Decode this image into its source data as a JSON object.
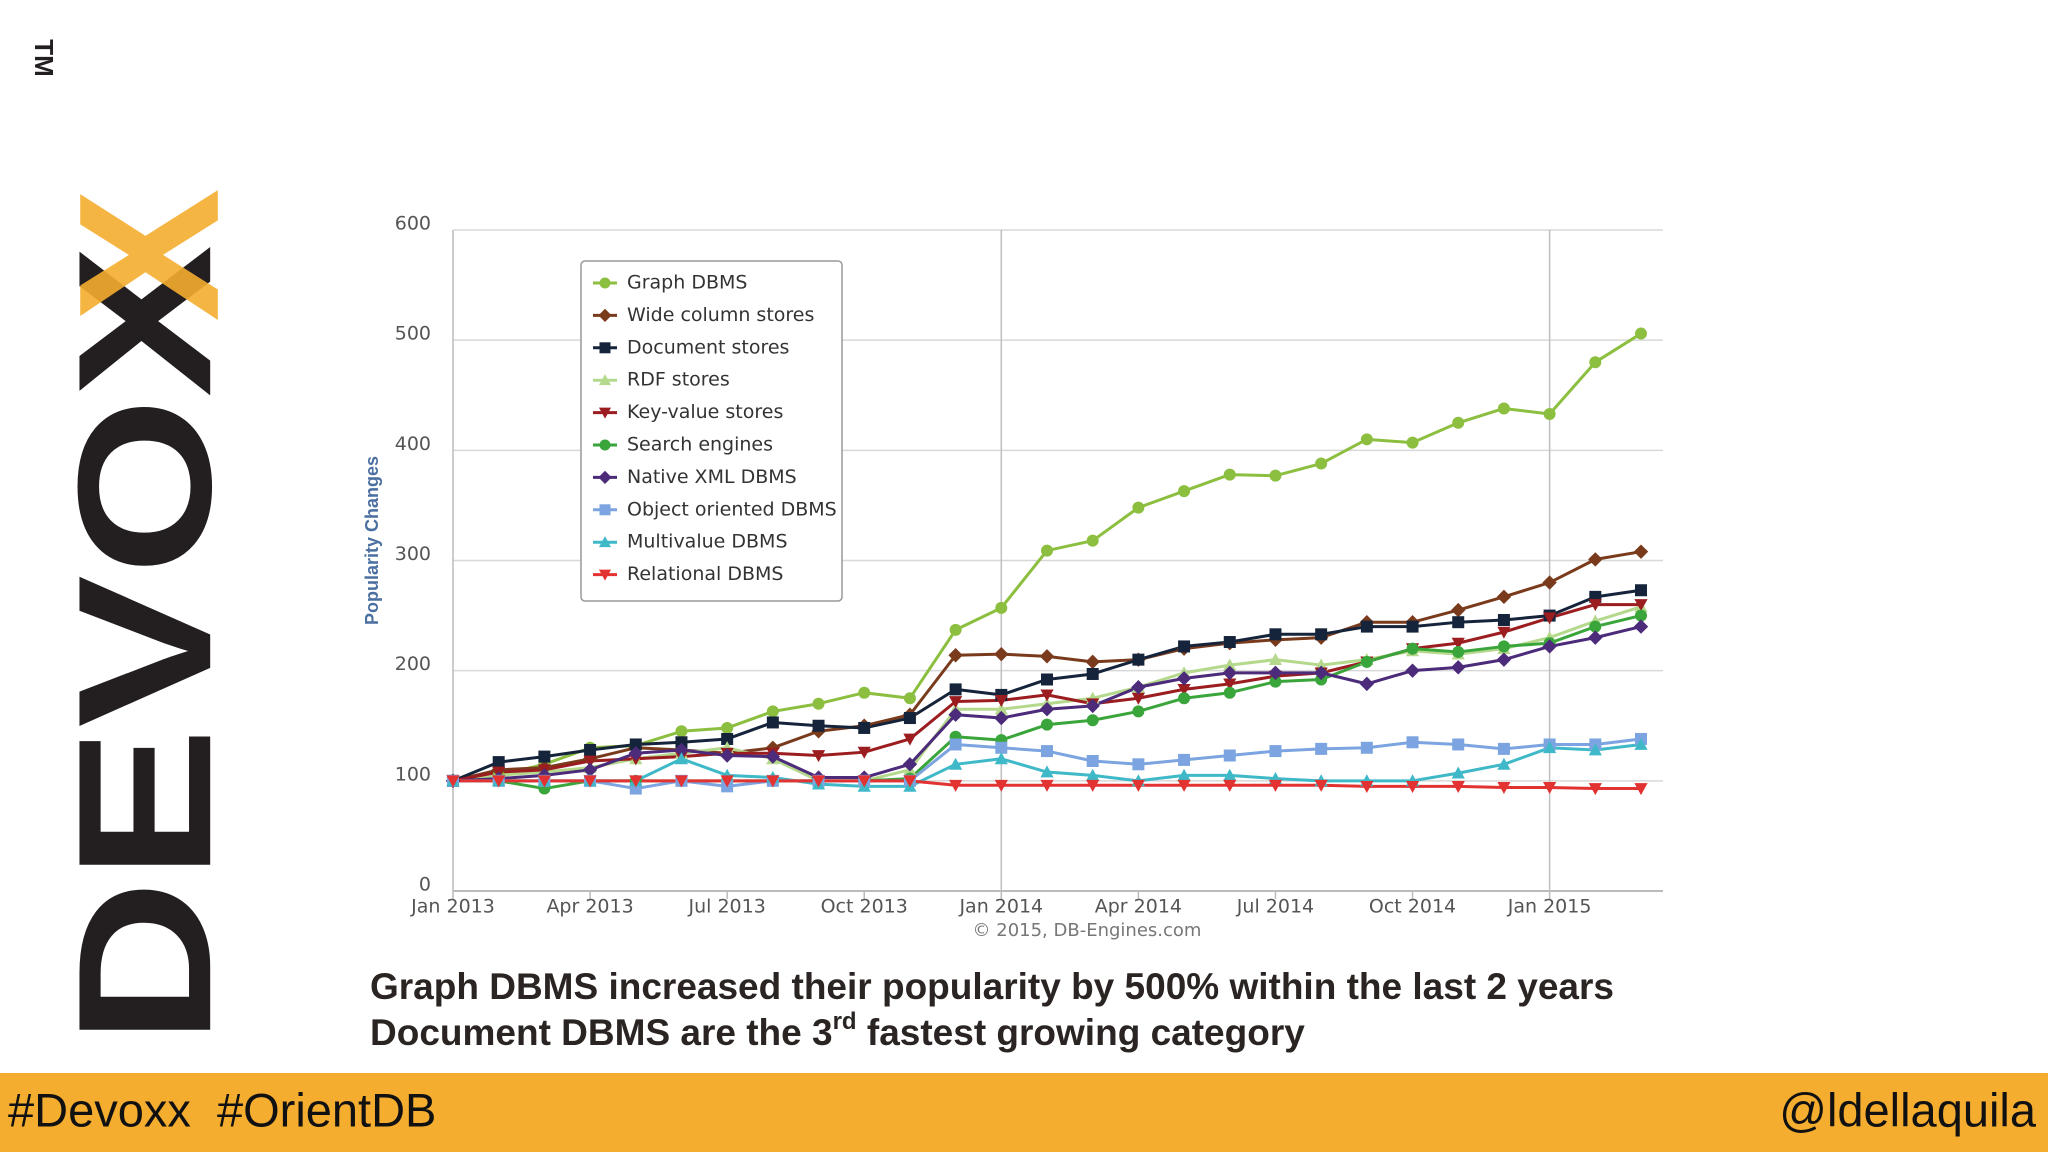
{
  "logo": {
    "text": "DEVOX",
    "accent": "X",
    "mark": "TM"
  },
  "chart_data": {
    "type": "line",
    "y_label": "Popularity Changes",
    "credit": "© 2015, DB-Engines.com",
    "x": [
      "2013-01",
      "2013-02",
      "2013-03",
      "2013-04",
      "2013-05",
      "2013-06",
      "2013-07",
      "2013-08",
      "2013-09",
      "2013-10",
      "2013-11",
      "2013-12",
      "2014-01",
      "2014-02",
      "2014-03",
      "2014-04",
      "2014-05",
      "2014-06",
      "2014-07",
      "2014-08",
      "2014-09",
      "2014-10",
      "2014-11",
      "2014-12",
      "2015-01",
      "2015-02",
      "2015-03"
    ],
    "xlim": [
      "2013-01",
      "2015-03"
    ],
    "xticks": [
      {
        "value": "2013-01",
        "label": "Jan 2013"
      },
      {
        "value": "2013-04",
        "label": "Apr 2013"
      },
      {
        "value": "2013-07",
        "label": "Jul 2013"
      },
      {
        "value": "2013-10",
        "label": "Oct 2013"
      },
      {
        "value": "2014-01",
        "label": "Jan 2014"
      },
      {
        "value": "2014-04",
        "label": "Apr 2014"
      },
      {
        "value": "2014-07",
        "label": "Jul 2014"
      },
      {
        "value": "2014-10",
        "label": "Oct 2014"
      },
      {
        "value": "2015-01",
        "label": "Jan 2015"
      }
    ],
    "ylim": [
      0,
      600
    ],
    "yticks": [
      0,
      100,
      200,
      300,
      400,
      500,
      600
    ],
    "grid": true,
    "legend": "top-left",
    "series": [
      {
        "name": "Graph DBMS",
        "color": "#8cbf3f",
        "marker": "circle",
        "values": [
          100,
          105,
          115,
          130,
          132,
          145,
          148,
          163,
          170,
          180,
          175,
          237,
          257,
          309,
          318,
          348,
          363,
          378,
          377,
          388,
          410,
          407,
          425,
          438,
          433,
          480,
          506
        ]
      },
      {
        "name": "Wide column stores",
        "color": "#7a3b1d",
        "marker": "diamond",
        "values": [
          100,
          110,
          112,
          120,
          130,
          128,
          125,
          130,
          145,
          150,
          160,
          214,
          215,
          213,
          208,
          210,
          220,
          225,
          228,
          230,
          244,
          244,
          255,
          267,
          280,
          301,
          308
        ]
      },
      {
        "name": "Document stores",
        "color": "#15243a",
        "marker": "square",
        "values": [
          100,
          117,
          122,
          128,
          133,
          135,
          138,
          153,
          150,
          148,
          157,
          183,
          178,
          192,
          197,
          210,
          222,
          226,
          233,
          233,
          240,
          240,
          244,
          246,
          250,
          267,
          273
        ]
      },
      {
        "name": "RDF stores",
        "color": "#b4d98c",
        "marker": "triangle",
        "values": [
          100,
          105,
          108,
          112,
          120,
          125,
          130,
          120,
          100,
          100,
          110,
          165,
          165,
          170,
          175,
          185,
          198,
          205,
          210,
          205,
          210,
          218,
          215,
          220,
          230,
          245,
          258
        ]
      },
      {
        "name": "Key-value stores",
        "color": "#9b1d20",
        "marker": "triangle-down",
        "values": [
          100,
          108,
          110,
          118,
          120,
          122,
          125,
          125,
          123,
          126,
          138,
          172,
          173,
          178,
          170,
          175,
          183,
          188,
          195,
          198,
          208,
          220,
          225,
          235,
          248,
          260,
          260
        ]
      },
      {
        "name": "Search engines",
        "color": "#3aa53a",
        "marker": "circle",
        "values": [
          100,
          100,
          93,
          100,
          100,
          100,
          100,
          100,
          100,
          100,
          102,
          140,
          137,
          151,
          155,
          163,
          175,
          180,
          190,
          192,
          208,
          220,
          217,
          222,
          225,
          240,
          250
        ]
      },
      {
        "name": "Native XML DBMS",
        "color": "#4b2b7a",
        "marker": "diamond",
        "values": [
          100,
          102,
          105,
          110,
          125,
          128,
          123,
          122,
          103,
          103,
          115,
          160,
          157,
          165,
          168,
          185,
          193,
          198,
          198,
          198,
          188,
          200,
          203,
          210,
          222,
          230,
          240
        ]
      },
      {
        "name": "Object oriented DBMS",
        "color": "#7ba4e0",
        "marker": "square",
        "values": [
          100,
          100,
          100,
          100,
          93,
          100,
          95,
          100,
          100,
          100,
          100,
          133,
          130,
          127,
          118,
          115,
          119,
          123,
          127,
          129,
          130,
          135,
          133,
          129,
          133,
          133,
          138
        ]
      },
      {
        "name": "Multivalue DBMS",
        "color": "#3fb9c8",
        "marker": "triangle",
        "values": [
          100,
          100,
          100,
          100,
          100,
          120,
          105,
          103,
          97,
          95,
          95,
          115,
          120,
          108,
          105,
          100,
          105,
          105,
          102,
          100,
          100,
          100,
          107,
          115,
          130,
          128,
          133
        ]
      },
      {
        "name": "Relational DBMS",
        "color": "#e23232",
        "marker": "triangle-down",
        "values": [
          100,
          100,
          100,
          100,
          100,
          100,
          100,
          100,
          100,
          100,
          100,
          96,
          96,
          96,
          96,
          96,
          96,
          96,
          96,
          96,
          95,
          95,
          95,
          94,
          94,
          93,
          93
        ]
      }
    ]
  },
  "caption": {
    "line1": "Graph DBMS increased their popularity by 500% within the last 2 years",
    "line2_before": "Document DBMS are the 3",
    "line2_sup": "rd",
    "line2_after": " fastest growing category"
  },
  "footer": {
    "left": "#Devoxx  #OrientDB",
    "right": "@ldellaquila"
  }
}
